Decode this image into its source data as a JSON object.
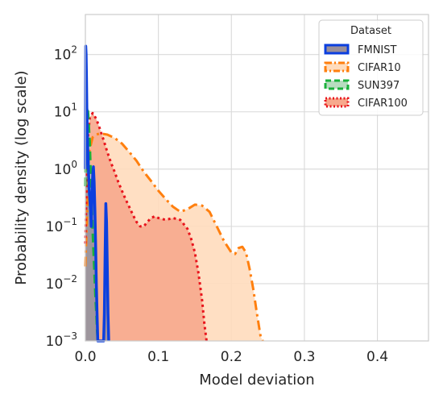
{
  "chart_data": {
    "type": "area",
    "xlabel": "Model deviation",
    "ylabel": "Probability density (log scale)",
    "xlim": [
      0.0,
      0.47
    ],
    "ylim": [
      0.001,
      500
    ],
    "yscale": "log",
    "grid": true,
    "x_ticks": [
      {
        "value": 0.0,
        "label": "0.0"
      },
      {
        "value": 0.1,
        "label": "0.1"
      },
      {
        "value": 0.2,
        "label": "0.2"
      },
      {
        "value": 0.3,
        "label": "0.3"
      },
      {
        "value": 0.4,
        "label": "0.4"
      }
    ],
    "y_ticks": [
      {
        "value": 0.001,
        "base": "10",
        "exp": "−3"
      },
      {
        "value": 0.01,
        "base": "10",
        "exp": "−2"
      },
      {
        "value": 0.1,
        "base": "10",
        "exp": "−1"
      },
      {
        "value": 1,
        "base": "10",
        "exp": "0"
      },
      {
        "value": 10,
        "base": "10",
        "exp": "1"
      },
      {
        "value": 100,
        "base": "10",
        "exp": "2"
      }
    ],
    "legend": {
      "title": "Dataset",
      "placement": "top-right",
      "entries": [
        "FMNIST",
        "CIFAR10",
        "SUN397",
        "CIFAR100"
      ]
    },
    "series": [
      {
        "name": "CIFAR10",
        "color": "#ff7f0e",
        "fill": "#ffdcbd",
        "dash": "dashdot",
        "x": [
          0.0,
          0.005,
          0.01,
          0.015,
          0.02,
          0.03,
          0.04,
          0.05,
          0.06,
          0.07,
          0.08,
          0.09,
          0.1,
          0.11,
          0.12,
          0.13,
          0.14,
          0.15,
          0.16,
          0.17,
          0.18,
          0.19,
          0.2,
          0.205,
          0.21,
          0.215,
          0.22,
          0.225,
          0.23,
          0.235,
          0.24,
          0.243
        ],
        "y": [
          0.02,
          2.0,
          3.6,
          4.0,
          4.2,
          4.0,
          3.5,
          2.8,
          2.0,
          1.4,
          0.9,
          0.62,
          0.42,
          0.3,
          0.22,
          0.18,
          0.2,
          0.24,
          0.23,
          0.18,
          0.1,
          0.055,
          0.035,
          0.033,
          0.042,
          0.044,
          0.035,
          0.018,
          0.008,
          0.003,
          0.0012,
          0.001
        ]
      },
      {
        "name": "CIFAR100",
        "color": "#e8141c",
        "fill": "#f7a98d",
        "dash": "dotted",
        "x": [
          0.0,
          0.003,
          0.006,
          0.01,
          0.015,
          0.02,
          0.025,
          0.03,
          0.035,
          0.04,
          0.045,
          0.05,
          0.055,
          0.06,
          0.065,
          0.07,
          0.075,
          0.08,
          0.085,
          0.09,
          0.095,
          0.1,
          0.11,
          0.12,
          0.13,
          0.14,
          0.145,
          0.15,
          0.155,
          0.16,
          0.163,
          0.166
        ],
        "y": [
          0.05,
          3.0,
          8.0,
          9.5,
          7.5,
          5.0,
          3.2,
          2.0,
          1.3,
          0.9,
          0.6,
          0.42,
          0.3,
          0.22,
          0.16,
          0.12,
          0.1,
          0.1,
          0.12,
          0.14,
          0.15,
          0.14,
          0.13,
          0.14,
          0.13,
          0.09,
          0.06,
          0.035,
          0.015,
          0.005,
          0.002,
          0.001
        ]
      },
      {
        "name": "SUN397",
        "color": "#1ab03b",
        "fill": "#b8dcc0",
        "dash": "dashed",
        "x": [
          0.0,
          0.001,
          0.002,
          0.003,
          0.004,
          0.005,
          0.006,
          0.007,
          0.008,
          0.009,
          0.01,
          0.011,
          0.012,
          0.013,
          0.014,
          0.015,
          0.016,
          0.017
        ],
        "y": [
          0.5,
          6.0,
          10.0,
          12.0,
          9.0,
          5.0,
          3.0,
          1.2,
          0.5,
          0.2,
          0.08,
          0.04,
          0.02,
          0.01,
          0.005,
          0.003,
          0.0015,
          0.001
        ]
      },
      {
        "name": "FMNIST",
        "color": "#0b3fdf",
        "fill": "#9a8f9a",
        "dash": "solid",
        "x": [
          0.0,
          0.0005,
          0.001,
          0.0015,
          0.002,
          0.003,
          0.004,
          0.005,
          0.006,
          0.007,
          0.008,
          0.009,
          0.01,
          0.011,
          0.012,
          0.013,
          0.014,
          0.015,
          0.016,
          0.017,
          0.018,
          0.019,
          0.02,
          0.021,
          0.022,
          0.023,
          0.024,
          0.025,
          0.026,
          0.027,
          0.028,
          0.029,
          0.03,
          0.031,
          0.032
        ],
        "y": [
          1.0,
          140,
          100,
          40,
          12,
          3.0,
          1.2,
          0.5,
          0.3,
          0.2,
          0.1,
          0.3,
          0.8,
          1.1,
          0.6,
          0.2,
          0.05,
          0.01,
          0.003,
          0.001,
          0.001,
          0.001,
          0.001,
          0.001,
          0.001,
          0.001,
          0.001,
          0.001,
          0.003,
          0.03,
          0.25,
          0.12,
          0.02,
          0.003,
          0.001
        ]
      }
    ]
  }
}
